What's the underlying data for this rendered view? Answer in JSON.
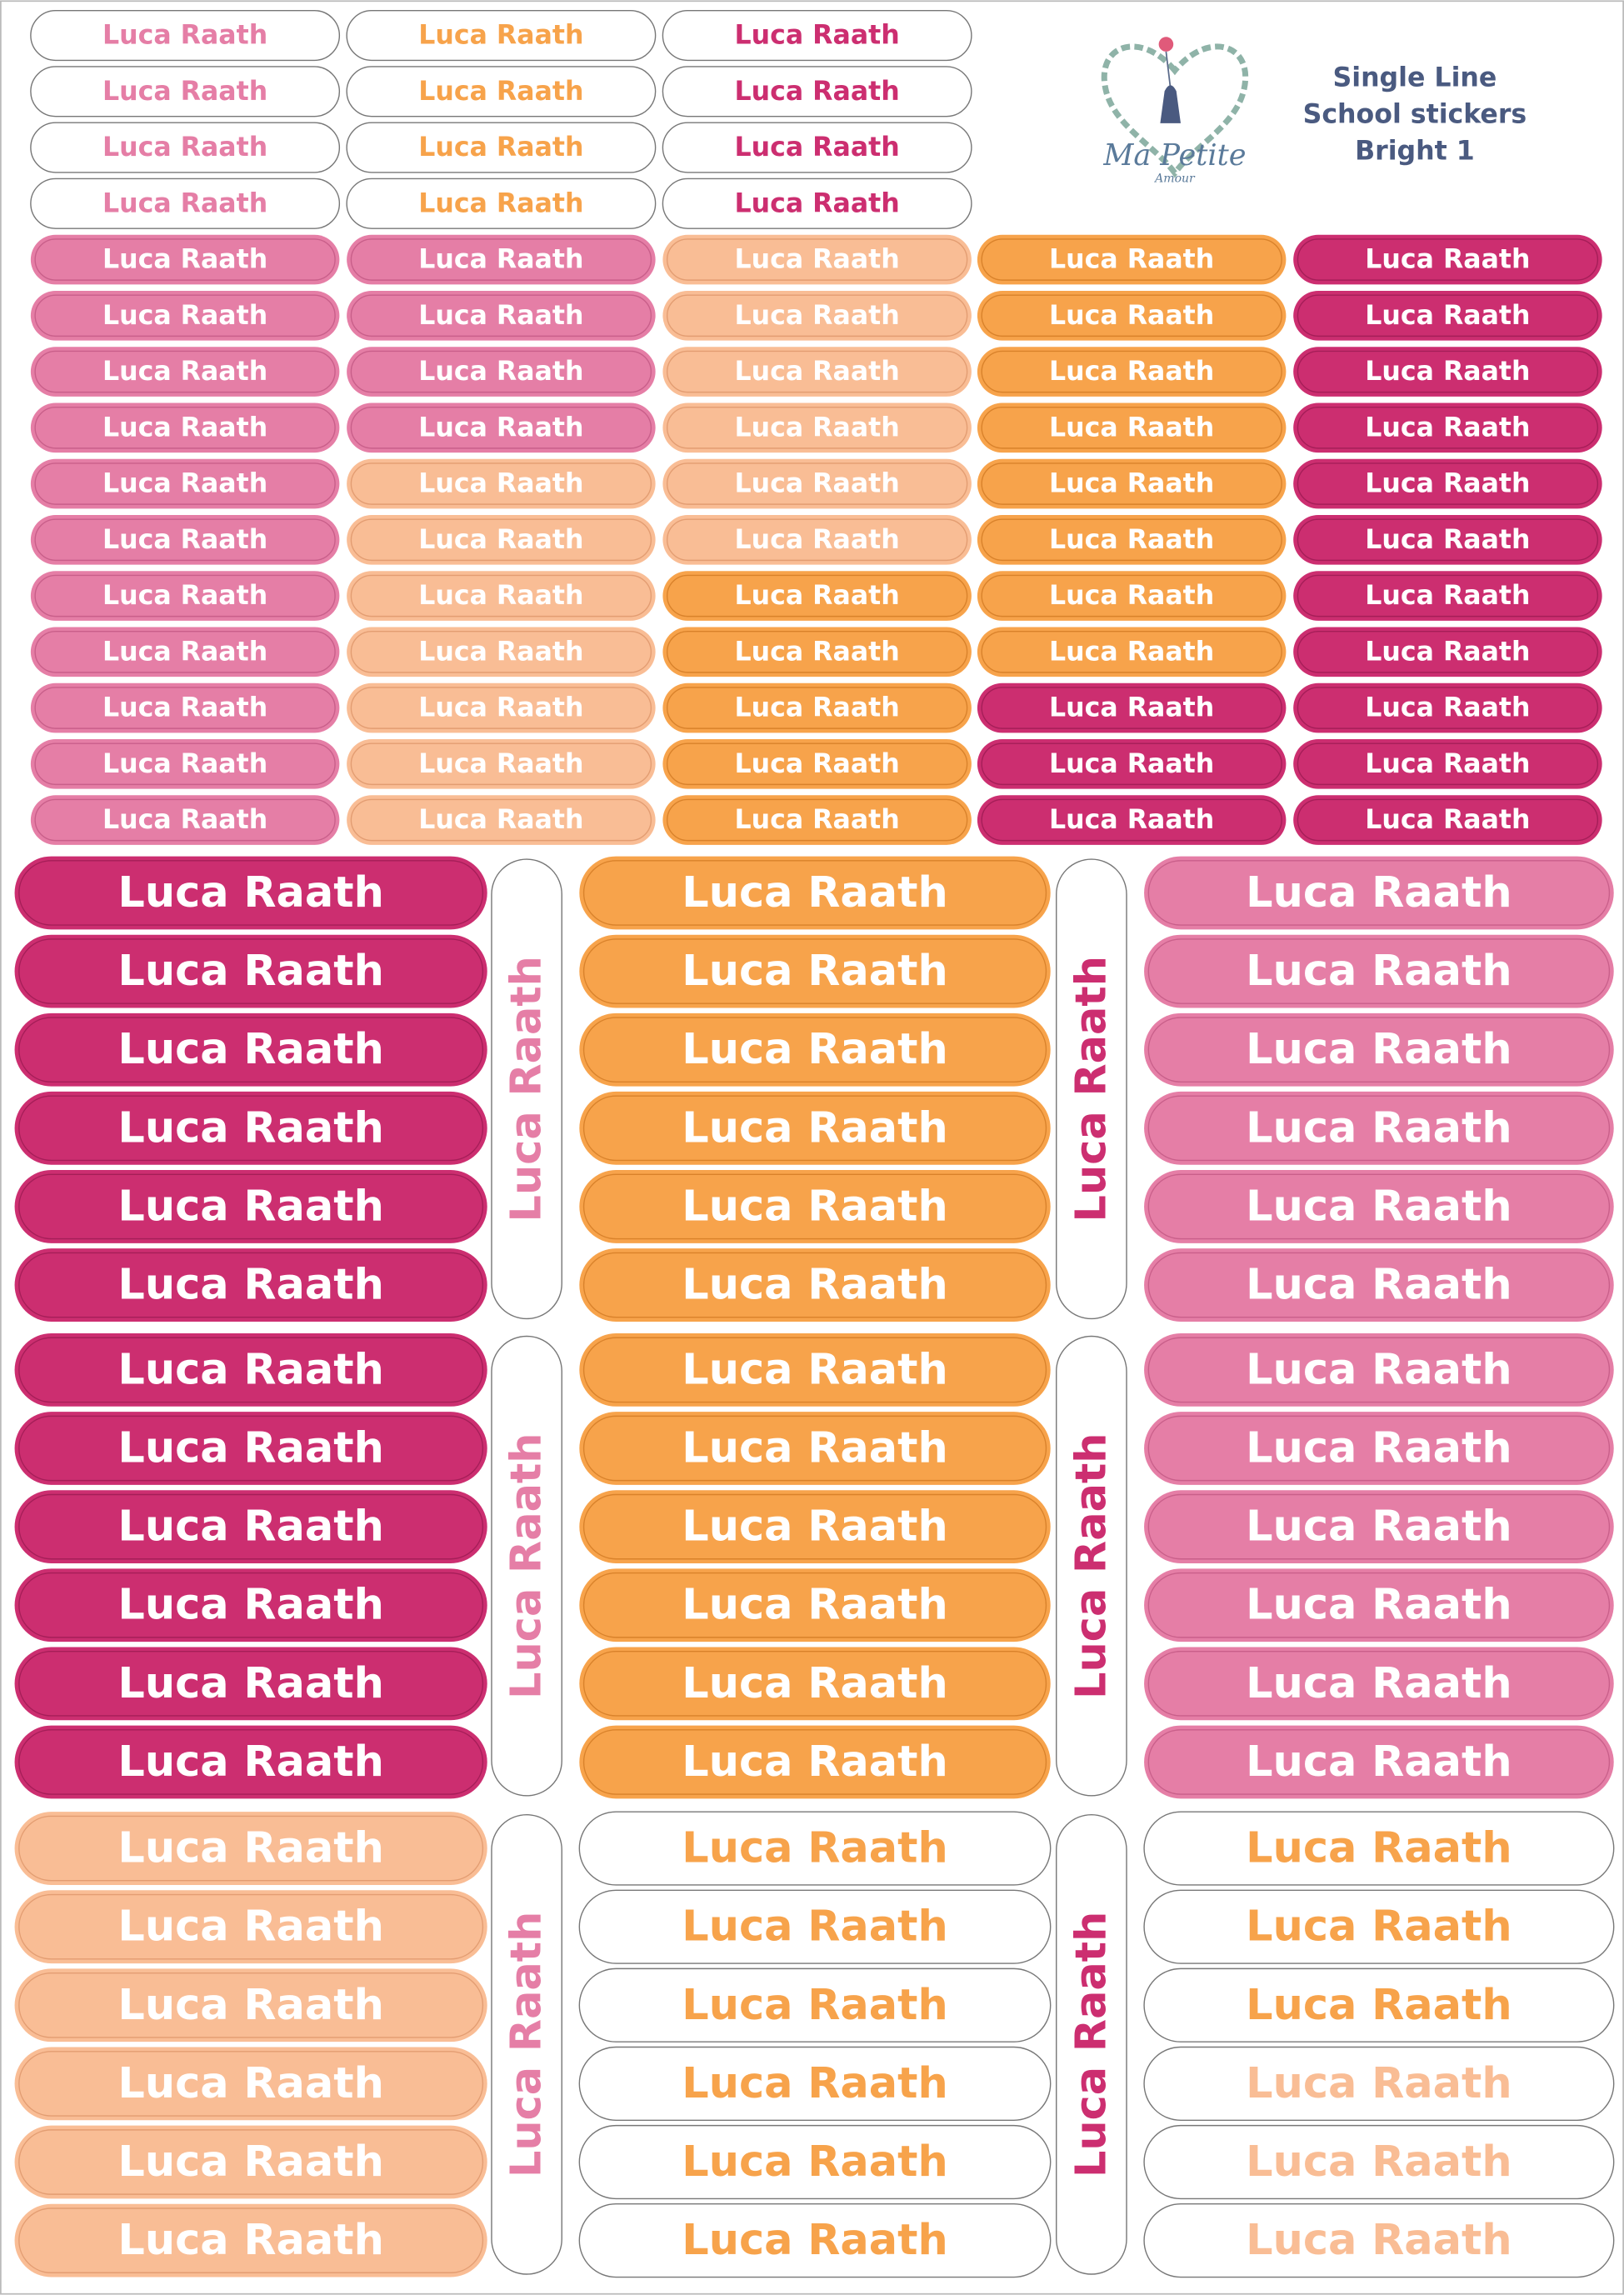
{
  "name": "Luca Raath",
  "logo": {
    "line1": "Ma Petite",
    "line2": "Amour"
  },
  "title": {
    "line1": "Single Line",
    "line2": "School stickers",
    "line3": "Bright 1"
  }
}
